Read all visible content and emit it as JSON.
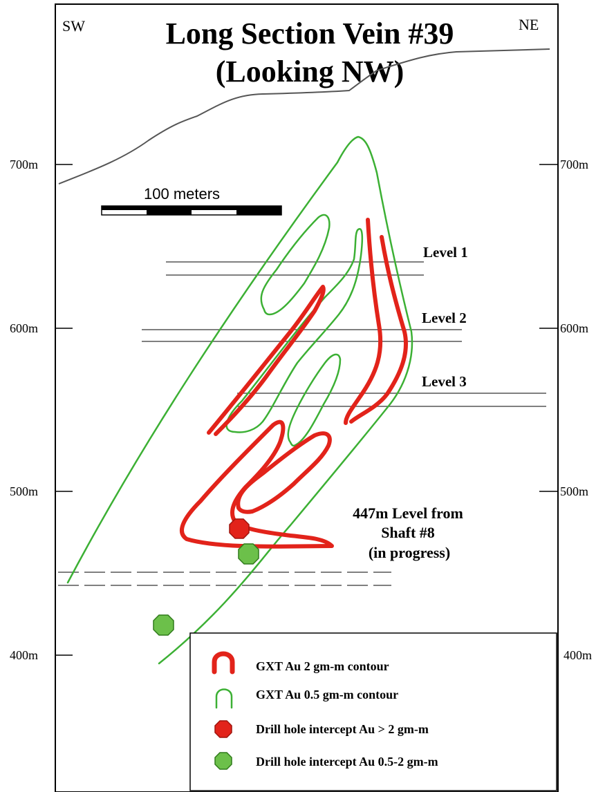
{
  "title": {
    "line1": "Long Section Vein #39",
    "line2": "(Looking NW)"
  },
  "directions": {
    "left": "SW",
    "right": "NE"
  },
  "scale_bar": {
    "label": "100 meters"
  },
  "elevation_ticks": {
    "left": [
      "700m",
      "600m",
      "500m",
      "400m"
    ],
    "right": [
      "700m",
      "600m",
      "500m",
      "400m"
    ]
  },
  "levels": [
    "Level 1",
    "Level 2",
    "Level 3"
  ],
  "annotation": {
    "line1": "447m Level from",
    "line2": "Shaft #8",
    "line3": "(in progress)"
  },
  "legend": {
    "items": [
      {
        "label": "GXT Au 2 gm-m contour",
        "symbol": "red-contour-icon",
        "color": "#e2231a"
      },
      {
        "label": "GXT Au 0.5 gm-m contour",
        "symbol": "green-contour-icon",
        "color": "#3cb034"
      },
      {
        "label": "Drill hole intercept Au > 2 gm-m",
        "symbol": "red-octagon-icon",
        "color": "#e2231a"
      },
      {
        "label": "Drill hole intercept Au 0.5-2 gm-m",
        "symbol": "green-octagon-icon",
        "color": "#6cc04a"
      }
    ]
  },
  "colors": {
    "red_contour": "#e2231a",
    "green_contour": "#3cb034",
    "red_intercept": "#e2231a",
    "green_intercept": "#6cc04a",
    "topography": "#555555",
    "level_lines": "#555555"
  }
}
